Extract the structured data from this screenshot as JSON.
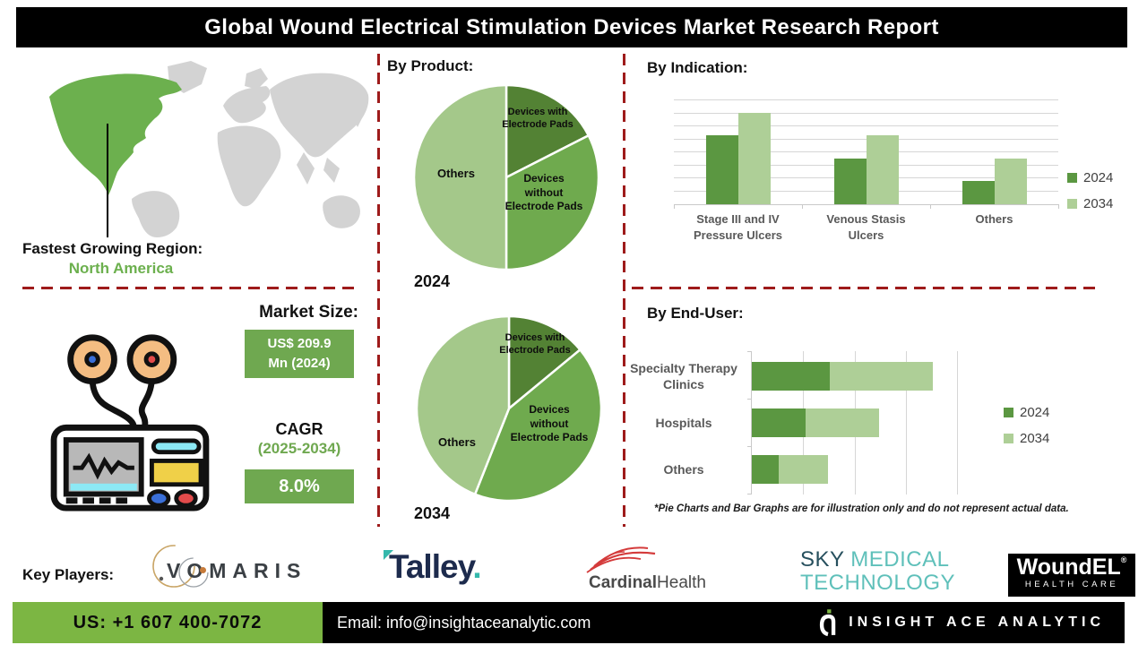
{
  "title": "Global Wound Electrical Stimulation Devices Market Research Report",
  "map": {
    "region_label": "Fastest Growing Region:",
    "region_value": "North America"
  },
  "market": {
    "heading": "Market Size:",
    "size_line1": "US$ 209.9",
    "size_line2": "Mn (2024)",
    "cagr_label": "CAGR",
    "cagr_period": "(2025-2034)",
    "cagr_value": "8.0%"
  },
  "sections": {
    "product": "By Product:",
    "indication": "By Indication:",
    "end_user": "By End-User:"
  },
  "disclaimer": "*Pie Charts and Bar Graphs are for illustration only and do not represent actual data.",
  "key_players": {
    "label": "Key Players:",
    "vomaris": {
      "text": "VOMARIS"
    },
    "talley": {
      "text": "Talley",
      "dot": "."
    },
    "cardinal": {
      "bold": "Cardinal",
      "regular": "Health"
    },
    "sky": {
      "word1": "SKY",
      "word2": "MEDICAL",
      "line2": "TECHNOLOGY"
    },
    "woundel": {
      "name": "WoundEL",
      "reg": "®",
      "sub": "HEALTH CARE"
    }
  },
  "footer": {
    "phone": "US: +1 607 400-7072",
    "email": "Email: info@insightaceanalytic.com",
    "brand": "INSIGHT ACE ANALYTIC"
  },
  "colors": {
    "green_dark": "#538234",
    "green_mid": "#6faa4e",
    "green_light": "#a4c88a",
    "bar_2024": "#5b9741",
    "bar_2034": "#aecf97",
    "box_green": "#6fa850",
    "footer_green": "#7cb643",
    "map_highlight": "#6cb04e",
    "dashed_red": "#9e1b1b"
  },
  "chart_data": [
    {
      "type": "pie",
      "title": "2024",
      "section": "By Product:",
      "slices": [
        {
          "label": "Devices with Electrode Pads",
          "value": 17.5,
          "color": "#538234"
        },
        {
          "label": "Devices without Electrode Pads",
          "value": 32.5,
          "color": "#6faa4e"
        },
        {
          "label": "Others",
          "value": 50,
          "color": "#a4c88a"
        }
      ]
    },
    {
      "type": "pie",
      "title": "2034",
      "section": "By Product:",
      "slices": [
        {
          "label": "Devices with Electrode Pads",
          "value": 14,
          "color": "#538234"
        },
        {
          "label": "Devices without Electrode Pads",
          "value": 42,
          "color": "#6faa4e"
        },
        {
          "label": "Others",
          "value": 44,
          "color": "#a4c88a"
        }
      ]
    },
    {
      "type": "bar",
      "title": "By Indication:",
      "categories": [
        "Stage III and IV Pressure Ulcers",
        "Venous Stasis Ulcers",
        "Others"
      ],
      "series": [
        {
          "name": "2024",
          "color": "#5b9741",
          "values": [
            66,
            44,
            22
          ]
        },
        {
          "name": "2034",
          "color": "#aecf97",
          "values": [
            88,
            66,
            44
          ]
        }
      ],
      "ylim": [
        0,
        100
      ],
      "gridline_step": 12.5,
      "grid": true,
      "legend_position": "right"
    },
    {
      "type": "bar-horizontal-stacked",
      "title": "By End-User:",
      "categories": [
        "Specialty Therapy Clinics",
        "Hospitals",
        "Others"
      ],
      "series": [
        {
          "name": "2024",
          "color": "#5b9741",
          "values": [
            38,
            26,
            13
          ]
        },
        {
          "name": "2034",
          "color": "#aecf97",
          "values": [
            50,
            36,
            24
          ]
        }
      ],
      "xlim": [
        0,
        100
      ],
      "gridline_step": 25,
      "grid": true,
      "legend_position": "right"
    }
  ]
}
